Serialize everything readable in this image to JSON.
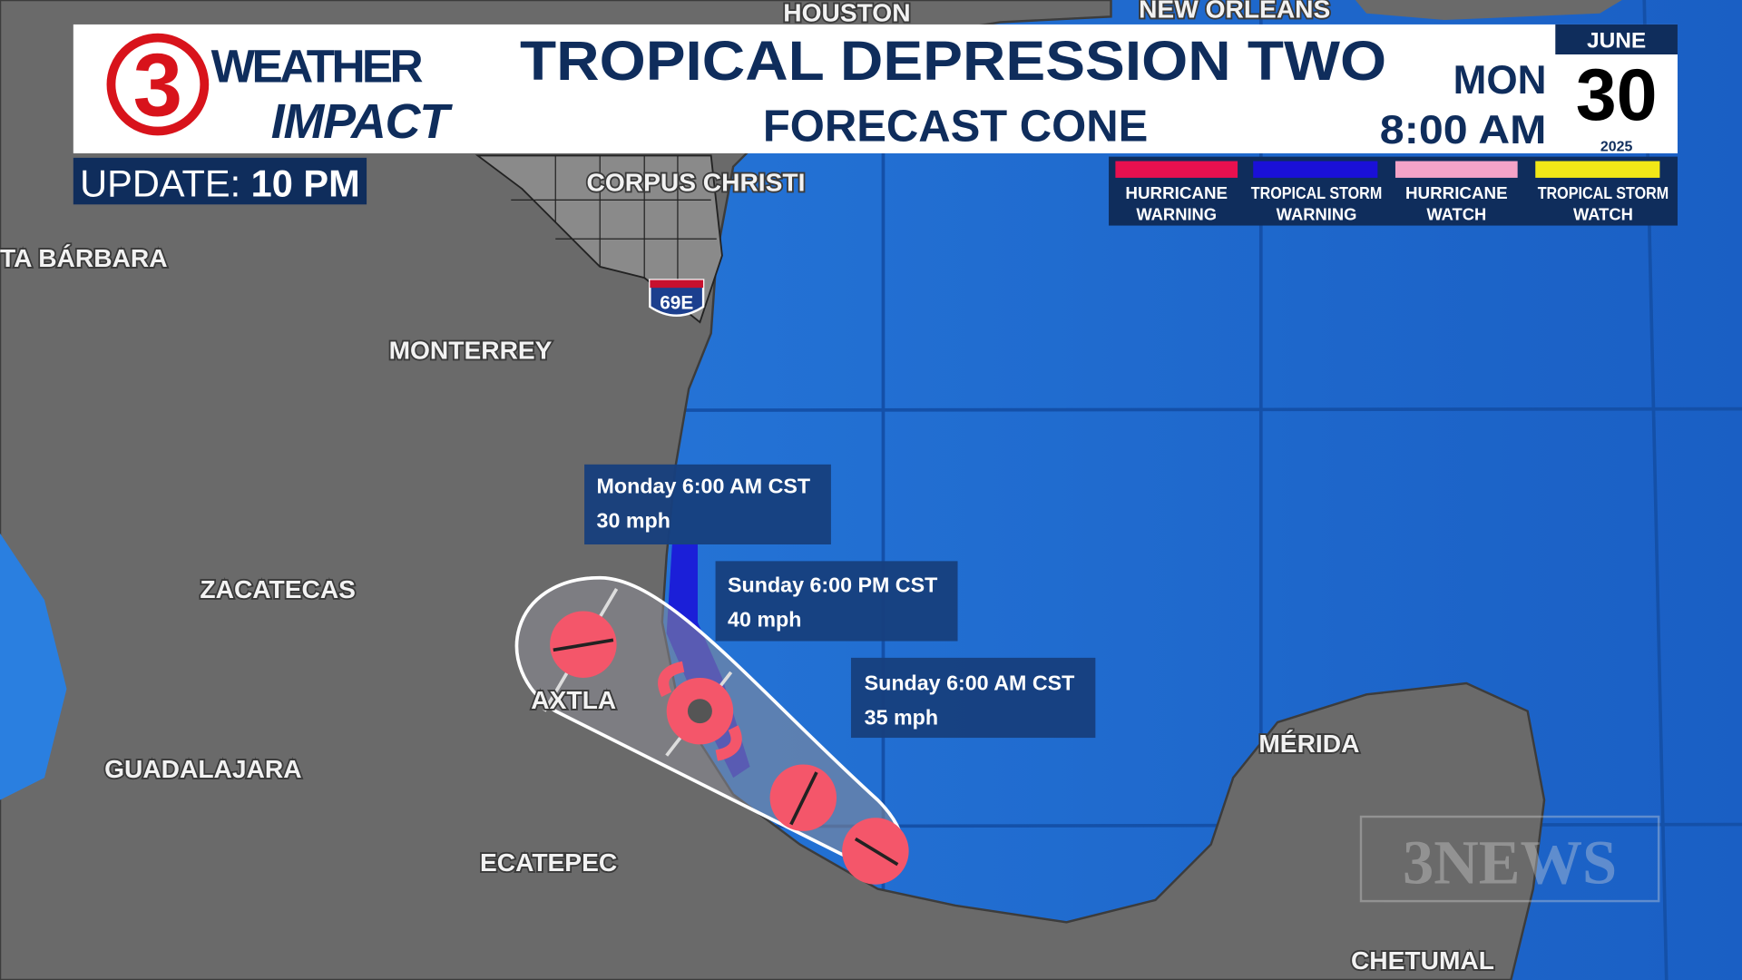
{
  "header": {
    "logo_number": "3",
    "logo_line1": "WEATHER",
    "logo_line2": "IMPACT",
    "title": "TROPICAL DEPRESSION TWO",
    "subtitle": "FORECAST CONE",
    "date": {
      "month": "JUNE",
      "weekday": "MON",
      "day": "30",
      "time": "8:00 AM",
      "year": "2025"
    }
  },
  "update": {
    "label": "UPDATE:",
    "time": "10 PM"
  },
  "legend": [
    {
      "line1": "HURRICANE",
      "line2": "WARNING",
      "color": "#e8104f"
    },
    {
      "line1": "TROPICAL STORM",
      "line2": "WARNING",
      "color": "#1a10d8"
    },
    {
      "line1": "HURRICANE",
      "line2": "WATCH",
      "color": "#f4a3c8"
    },
    {
      "line1": "TROPICAL STORM",
      "line2": "WATCH",
      "color": "#f2e817"
    }
  ],
  "cities": {
    "houston": "HOUSTON",
    "new_orleans": "NEW ORLEANS",
    "corpus_christi": "CORPUS CHRISTI",
    "santa_barbara": "TA BÁRBARA",
    "monterrey": "MONTERREY",
    "zacatecas": "ZACATECAS",
    "axtla": "AXTLA",
    "guadalajara": "GUADALAJARA",
    "ecatepec": "ECATEPEC",
    "merida": "MÉRIDA",
    "chetumal": "CHETUMAL"
  },
  "highway_shield": "69E",
  "forecast_points": [
    {
      "time": "Monday 6:00 AM CST",
      "wind": "30 mph"
    },
    {
      "time": "Sunday 6:00 PM CST",
      "wind": "40 mph"
    },
    {
      "time": "Sunday 6:00 AM CST",
      "wind": "35 mph"
    }
  ],
  "watermark": "3NEWS",
  "colors": {
    "ocean": "#1e6fd6",
    "land": "#6b6b6b",
    "header_text": "#0f2d5c",
    "storm_marker": "#f4566a",
    "label_box": "#173f7d"
  }
}
